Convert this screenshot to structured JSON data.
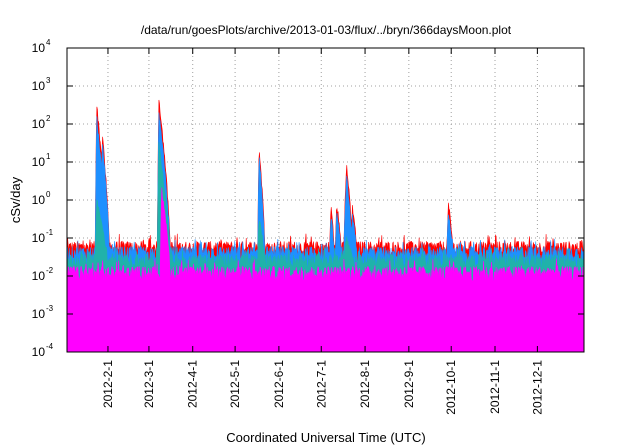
{
  "chart_data": {
    "type": "area",
    "title": "/data/run/goesPlots/archive/2013-01-03/flux/../bryn/366daysMoon.plot",
    "xlabel": "Coordinated Universal Time (UTC)",
    "ylabel": "cSv/day",
    "yscale": "log",
    "ylim": [
      0.0001,
      10000
    ],
    "xlim": [
      "2012-01-03",
      "2013-01-03"
    ],
    "grid": true,
    "y_ticks": [
      {
        "base": "10",
        "exp": "-4"
      },
      {
        "base": "10",
        "exp": "-3"
      },
      {
        "base": "10",
        "exp": "-2"
      },
      {
        "base": "10",
        "exp": "-1"
      },
      {
        "base": "10",
        "exp": "0"
      },
      {
        "base": "10",
        "exp": "1"
      },
      {
        "base": "10",
        "exp": "2"
      },
      {
        "base": "10",
        "exp": "3"
      },
      {
        "base": "10",
        "exp": "4"
      }
    ],
    "x_ticks": [
      "2012-2-1",
      "2012-3-1",
      "2012-4-1",
      "2012-5-1",
      "2012-6-1",
      "2012-7-1",
      "2012-8-1",
      "2012-9-1",
      "2012-10-1",
      "2012-11-1",
      "2012-12-1"
    ],
    "series": [
      {
        "color": "#ff0000",
        "baseline": 0.055,
        "events": [
          {
            "start": "2012-01-23",
            "peak": "2012-01-24",
            "end": "2012-01-31",
            "value": 350
          },
          {
            "start": "2012-01-27",
            "peak": "2012-01-28",
            "end": "2012-02-02",
            "value": 60
          },
          {
            "start": "2012-03-07",
            "peak": "2012-03-08",
            "end": "2012-03-16",
            "value": 500
          },
          {
            "start": "2012-05-17",
            "peak": "2012-05-18",
            "end": "2012-05-22",
            "value": 25
          },
          {
            "start": "2012-07-07",
            "peak": "2012-07-08",
            "end": "2012-07-10",
            "value": 0.7
          },
          {
            "start": "2012-07-11",
            "peak": "2012-07-12",
            "end": "2012-07-15",
            "value": 0.8
          },
          {
            "start": "2012-07-17",
            "peak": "2012-07-19",
            "end": "2012-07-23",
            "value": 8
          },
          {
            "start": "2012-07-22",
            "peak": "2012-07-23",
            "end": "2012-07-26",
            "value": 0.7
          },
          {
            "start": "2012-09-28",
            "peak": "2012-09-29",
            "end": "2012-10-02",
            "value": 0.8
          }
        ]
      },
      {
        "color": "#1e90ff",
        "baseline": 0.04,
        "events": [
          {
            "start": "2012-01-23",
            "peak": "2012-01-24",
            "end": "2012-01-31",
            "value": 150
          },
          {
            "start": "2012-01-27",
            "peak": "2012-01-28",
            "end": "2012-02-02",
            "value": 35
          },
          {
            "start": "2012-03-07",
            "peak": "2012-03-08",
            "end": "2012-03-16",
            "value": 200
          },
          {
            "start": "2012-05-17",
            "peak": "2012-05-18",
            "end": "2012-05-22",
            "value": 15
          },
          {
            "start": "2012-07-07",
            "peak": "2012-07-08",
            "end": "2012-07-10",
            "value": 0.4
          },
          {
            "start": "2012-07-11",
            "peak": "2012-07-12",
            "end": "2012-07-15",
            "value": 0.5
          },
          {
            "start": "2012-07-17",
            "peak": "2012-07-19",
            "end": "2012-07-23",
            "value": 4
          },
          {
            "start": "2012-07-22",
            "peak": "2012-07-23",
            "end": "2012-07-26",
            "value": 0.4
          },
          {
            "start": "2012-09-28",
            "peak": "2012-09-29",
            "end": "2012-10-02",
            "value": 0.5
          }
        ]
      },
      {
        "color": "#20b2aa",
        "baseline": 0.025,
        "events": [
          {
            "start": "2012-01-23",
            "peak": "2012-01-24",
            "end": "2012-01-31",
            "value": 1
          },
          {
            "start": "2012-03-07",
            "peak": "2012-03-08",
            "end": "2012-03-16",
            "value": 30
          },
          {
            "start": "2012-05-17",
            "peak": "2012-05-18",
            "end": "2012-05-22",
            "value": 0.3
          },
          {
            "start": "2012-07-17",
            "peak": "2012-07-19",
            "end": "2012-07-23",
            "value": 0.1
          }
        ]
      },
      {
        "color": "#ff00ff",
        "baseline": 0.012,
        "events": [
          {
            "start": "2012-03-09",
            "peak": "2012-03-10",
            "end": "2012-03-16",
            "value": 2
          }
        ]
      }
    ]
  }
}
